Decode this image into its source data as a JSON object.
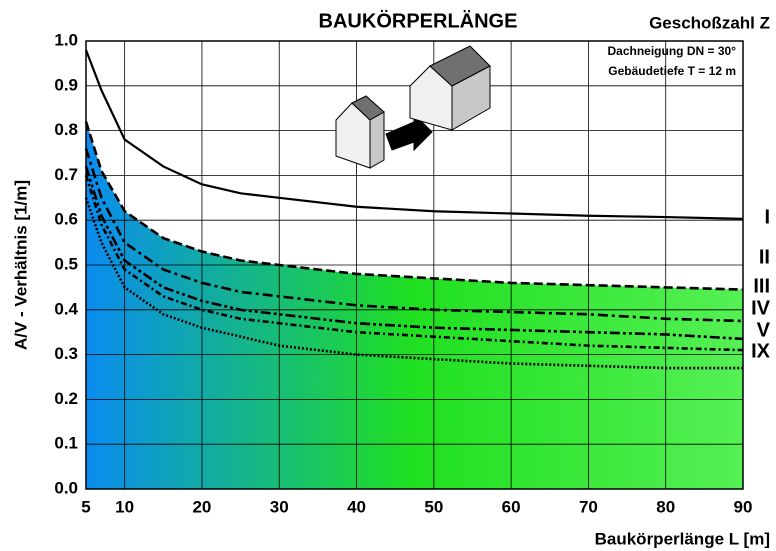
{
  "chart_data": {
    "type": "line",
    "title": "BAUKÖRPERLÄNGE",
    "legend_title": "Geschoßzahl Z",
    "annotations": [
      "Dachneigung  DN = 30°",
      "Gebäudetiefe  T = 12 m"
    ],
    "x_label": "Baukörperlänge L [m]",
    "y_label": "A/V - Verhältnis [1/m]",
    "x": [
      5,
      7,
      10,
      15,
      20,
      25,
      30,
      40,
      50,
      60,
      70,
      80,
      90
    ],
    "series": [
      {
        "name": "I",
        "color": "#000000",
        "dash": "solid",
        "values": [
          0.98,
          0.89,
          0.78,
          0.72,
          0.68,
          0.66,
          0.65,
          0.63,
          0.62,
          0.615,
          0.61,
          0.607,
          0.603
        ]
      },
      {
        "name": "II",
        "color": "#000000",
        "dash": "dashed",
        "values": [
          0.82,
          0.71,
          0.62,
          0.56,
          0.53,
          0.51,
          0.5,
          0.48,
          0.47,
          0.46,
          0.455,
          0.45,
          0.445
        ]
      },
      {
        "name": "III",
        "color": "#000000",
        "dash": "dashdot",
        "values": [
          0.76,
          0.65,
          0.55,
          0.49,
          0.46,
          0.44,
          0.43,
          0.41,
          0.4,
          0.395,
          0.39,
          0.38,
          0.375
        ]
      },
      {
        "name": "IV",
        "color": "#000000",
        "dash": "dashdotdot",
        "values": [
          0.72,
          0.61,
          0.51,
          0.45,
          0.42,
          0.4,
          0.39,
          0.37,
          0.36,
          0.355,
          0.35,
          0.345,
          0.335
        ]
      },
      {
        "name": "V",
        "color": "#000000",
        "dash": "longdash",
        "values": [
          0.7,
          0.59,
          0.49,
          0.43,
          0.4,
          0.38,
          0.37,
          0.35,
          0.34,
          0.33,
          0.32,
          0.315,
          0.31
        ]
      },
      {
        "name": "IX",
        "color": "#000000",
        "dash": "dotted",
        "values": [
          0.65,
          0.55,
          0.45,
          0.39,
          0.36,
          0.34,
          0.32,
          0.3,
          0.29,
          0.28,
          0.275,
          0.27,
          0.27
        ]
      }
    ],
    "fill_gradient": [
      "#0a8cf0",
      "#20e020",
      "#55f055"
    ],
    "xlim": [
      5,
      90
    ],
    "ylim": [
      0,
      1
    ],
    "xticks": [
      5,
      10,
      20,
      30,
      40,
      50,
      60,
      70,
      80,
      90
    ],
    "yticks": [
      {
        "value": 0,
        "label": "0.0"
      },
      0.1,
      0.2,
      0.3,
      0.4,
      0.5,
      0.6,
      0.7,
      0.8,
      0.9,
      {
        "value": 1,
        "label": "1.0"
      }
    ],
    "grid": true
  }
}
